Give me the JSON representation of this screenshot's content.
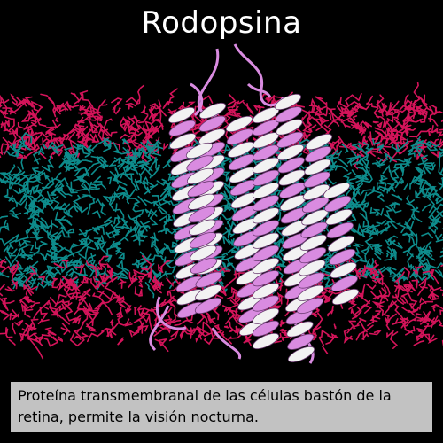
{
  "title": "Rodopsina",
  "caption": "Proteína transmembranal de las células bastón de la retina, permite la visión nocturna.",
  "colors": {
    "background": "#000000",
    "lipid_head": "#d4145a",
    "lipid_tail": "#0e8c8c",
    "helix": "#d98be0",
    "helix_inner": "#f2f2f2",
    "caption_box": "#c2c2c2"
  },
  "image": {
    "subject": "rhodopsin-protein-in-lipid-bilayer"
  }
}
